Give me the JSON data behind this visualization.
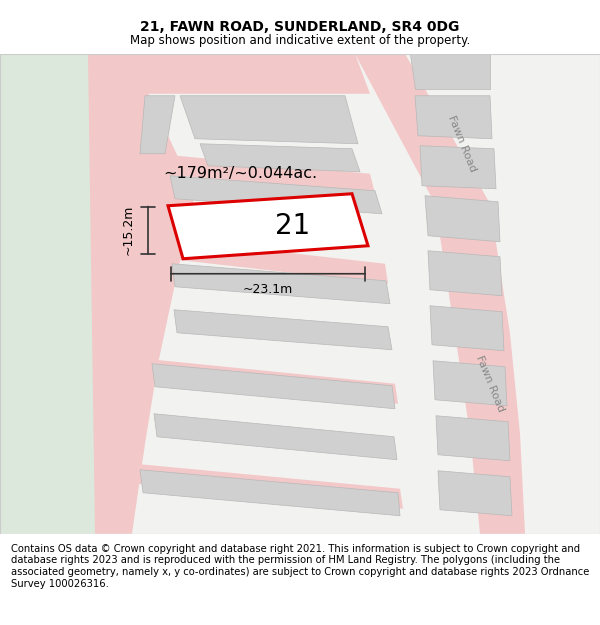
{
  "title": "21, FAWN ROAD, SUNDERLAND, SR4 0DG",
  "subtitle": "Map shows position and indicative extent of the property.",
  "footnote": "Contains OS data © Crown copyright and database right 2021. This information is subject to Crown copyright and database rights 2023 and is reproduced with the permission of HM Land Registry. The polygons (including the associated geometry, namely x, y co-ordinates) are subject to Crown copyright and database rights 2023 Ordnance Survey 100026316.",
  "area_label": "~179m²/~0.044ac.",
  "width_label": "~23.1m",
  "height_label": "~15.2m",
  "plot_number": "21",
  "map_bg": "#f2f2f0",
  "green_bg": "#dce8dc",
  "road_color": "#f2c8c8",
  "building_color": "#d0d0d0",
  "building_edge": "#b8b8b8",
  "plot_outline_color": "#dd0000",
  "road_label_color": "#888888",
  "dim_line_color": "#333333",
  "title_fontsize": 10,
  "subtitle_fontsize": 8.5,
  "footnote_fontsize": 7.2
}
